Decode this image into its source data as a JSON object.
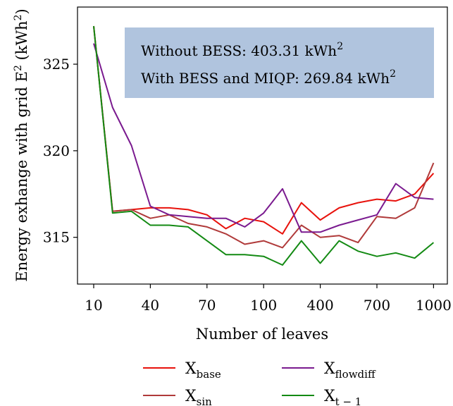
{
  "chart_data": {
    "type": "line",
    "xlabel": "Number of leaves",
    "ylabel_main": "Energy exhange with grid E",
    "ylabel_sup": "2",
    "ylabel_unit_pre": " (kWh",
    "ylabel_unit_sup": "2",
    "ylabel_unit_post": ")",
    "x_index": [
      0,
      1,
      2,
      3,
      4,
      5,
      6,
      7,
      8,
      9,
      10,
      11,
      12,
      13,
      14,
      15,
      16,
      17,
      18
    ],
    "x_ticks": [
      {
        "index": 0,
        "label": "10"
      },
      {
        "index": 3,
        "label": "40"
      },
      {
        "index": 6,
        "label": "70"
      },
      {
        "index": 9,
        "label": "100"
      },
      {
        "index": 12,
        "label": "400"
      },
      {
        "index": 15,
        "label": "700"
      },
      {
        "index": 18,
        "label": "1000"
      }
    ],
    "y_ticks": [
      315,
      320,
      325
    ],
    "ylim": [
      312.3,
      328.3
    ],
    "grid": false,
    "annotation": {
      "line1_pre": "Without BESS: 403.31 kWh",
      "line1_sup": "2",
      "line2_pre": "With BESS and MIQP: 269.84 kWh",
      "line2_sup": "2",
      "background": "#b0c4de"
    },
    "series": [
      {
        "name_base": "X",
        "name_sub": "base",
        "color": "#e8120c",
        "values": [
          327.2,
          316.5,
          316.6,
          316.7,
          316.7,
          316.6,
          316.3,
          315.5,
          316.1,
          315.9,
          315.2,
          317.0,
          316.0,
          316.7,
          317.0,
          317.2,
          317.1,
          317.5,
          318.7
        ]
      },
      {
        "name_base": "X",
        "name_sub": "sin",
        "color": "#b03a3a",
        "values": [
          327.2,
          316.5,
          316.6,
          316.1,
          316.3,
          315.8,
          315.6,
          315.2,
          314.6,
          314.8,
          314.4,
          315.7,
          315.0,
          315.1,
          314.7,
          316.2,
          316.1,
          316.7,
          319.3
        ]
      },
      {
        "name_base": "X",
        "name_sub": "flowdiff",
        "color": "#7a1a8f",
        "values": [
          326.2,
          322.5,
          320.3,
          316.8,
          316.3,
          316.2,
          316.1,
          316.1,
          315.6,
          316.4,
          317.8,
          315.3,
          315.3,
          315.7,
          316.0,
          316.3,
          318.1,
          317.3,
          317.2
        ]
      },
      {
        "name_base": "X",
        "name_sub": "t − 1",
        "color": "#138a13",
        "values": [
          327.2,
          316.4,
          316.5,
          315.7,
          315.7,
          315.6,
          314.8,
          314.0,
          314.0,
          313.9,
          313.4,
          314.8,
          313.5,
          314.8,
          314.2,
          313.9,
          314.1,
          313.8,
          314.7
        ]
      }
    ],
    "legend_placement": "bottom"
  }
}
